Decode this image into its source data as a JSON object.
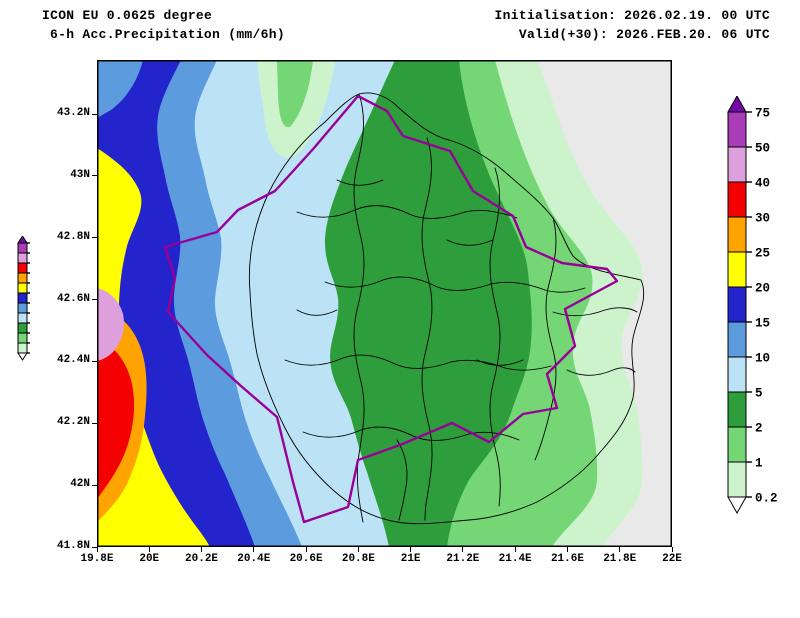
{
  "header": {
    "model": "ICON EU 0.0625 degree",
    "product": "6-h Acc.Precipitation (mm/6h)",
    "initialisation": "Initialisation: 2026.02.19. 00 UTC",
    "valid": "Valid(+30): 2026.FEB.20. 06 UTC"
  },
  "axes": {
    "x_tick_labels": [
      "19.8E",
      "20E",
      "20.2E",
      "20.4E",
      "20.6E",
      "20.8E",
      "21E",
      "21.2E",
      "21.4E",
      "21.6E",
      "21.8E",
      "22E"
    ],
    "y_tick_labels": [
      "41.8N",
      "42N",
      "42.2N",
      "42.4N",
      "42.6N",
      "42.8N",
      "43N",
      "43.2N"
    ],
    "lon_range": [
      19.8,
      22.0
    ],
    "lat_range": [
      41.8,
      43.375
    ]
  },
  "legend": {
    "tick_labels": [
      "75",
      "50",
      "40",
      "30",
      "25",
      "20",
      "15",
      "10",
      "5",
      "2",
      "1",
      "0.2"
    ],
    "order": [
      "gt75",
      "p50_75",
      "p40_50",
      "p30_40",
      "p25_30",
      "p20_25",
      "p15_20",
      "p10_15",
      "p5_10",
      "p2_5",
      "p1_2",
      "p0_2_1",
      "lt0_2"
    ]
  },
  "palette": {
    "gt75": "#7208A8",
    "p50_75": "#A93DB8",
    "p40_50": "#DDA0DD",
    "p30_40": "#F40000",
    "p25_30": "#FFA300",
    "p20_25": "#FFFF00",
    "p15_20": "#2424CC",
    "p10_15": "#5B9BDE",
    "p5_10": "#BCE3F5",
    "p2_5": "#2E9E3C",
    "p1_2": "#74D674",
    "p0_2_1": "#CDF3CD",
    "lt0_2": "#FFFFFF",
    "map_bg": "#E9E9E9"
  },
  "map": {
    "country_border_color": "#990099",
    "district_border_color": "#000000",
    "frame_color": "#000000"
  }
}
